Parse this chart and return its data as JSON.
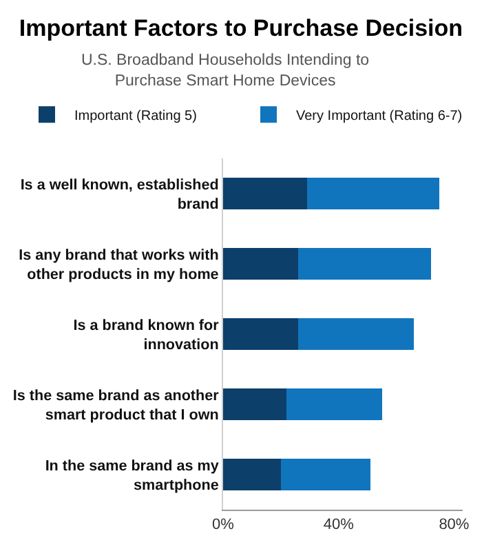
{
  "chart_data": {
    "type": "bar",
    "orientation": "horizontal",
    "stacked": true,
    "title": "Important Factors to Purchase Decision",
    "subtitle": "U.S. Broadband Households Intending to Purchase Smart Home Devices",
    "categories": [
      "Is a well known, established brand",
      "Is any brand that works with other products in my home",
      "Is a brand known for innovation",
      "Is the same brand as another smart product that I own",
      "In the same brand as my smartphone"
    ],
    "series": [
      {
        "name": "Important (Rating 5)",
        "color": "#0d3f6b",
        "values": [
          29,
          26,
          26,
          22,
          20
        ]
      },
      {
        "name": "Very Important (Rating 6-7)",
        "color": "#1175bd",
        "values": [
          46,
          46,
          40,
          33,
          31
        ]
      }
    ],
    "xlim": [
      0,
      83
    ],
    "xticks": [
      {
        "value": 0,
        "label": "0%"
      },
      {
        "value": 40,
        "label": "40%"
      },
      {
        "value": 80,
        "label": "80%"
      }
    ],
    "grid": false,
    "legend": "top"
  }
}
